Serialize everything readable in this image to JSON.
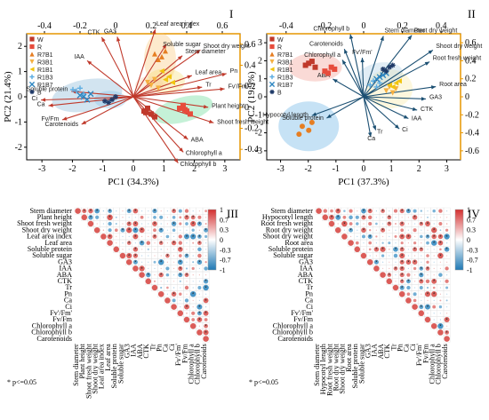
{
  "panels": {
    "I": {
      "id": "I",
      "xlabel": "PC1 (34.3%)",
      "ylabel": "PC2 (21.4%)",
      "xticks": [
        "-3",
        "-2",
        "-1",
        "0",
        "1",
        "2",
        "3"
      ],
      "yticks": [
        "2",
        "1",
        "0",
        "-1",
        "-2"
      ],
      "top_ticks": [
        "-0.4",
        "-0.2",
        "0",
        "0.2",
        "0.4",
        "0.6"
      ],
      "right_ticks": [
        "0.6",
        "0.4",
        "0.2",
        "0",
        "-0.2",
        "-0.4"
      ],
      "legend": [
        "W",
        "R",
        "R7B1",
        "R3B1",
        "R1B1",
        "R1B3",
        "R1B7",
        "B"
      ],
      "vars": [
        "GA3",
        "CTK",
        "IAA",
        "Leaf area index",
        "Soluble sugar",
        "Shoot dry weight",
        "Stem diameter",
        "Pn",
        "Tr",
        "Leaf area",
        "Fv'/Fm'",
        "Plant height",
        "Shoot fresh weight",
        "ABA",
        "Chlorophyll a",
        "Chlorophyll b",
        "Carotenoids",
        "Fv/Fm",
        "Ca",
        "Ci",
        "Soluble protein"
      ]
    },
    "II": {
      "id": "II",
      "xlabel": "PC1 (37.3%)",
      "ylabel": "PC2 (19.9%)",
      "xticks": [
        "-3",
        "-2",
        "-1",
        "0",
        "1",
        "2",
        "3"
      ],
      "yticks": [
        "3",
        "2",
        "1",
        "0",
        "-1",
        "-2",
        "-3"
      ],
      "top_ticks": [
        "-0.4",
        "-0.2",
        "0",
        "0.2",
        "0.4"
      ],
      "right_ticks": [
        "0.6",
        "0.4",
        "0.2",
        "0",
        "-0.2",
        "-0.4",
        "-0.6"
      ],
      "legend": [
        "W",
        "R",
        "R7B1",
        "R3B1",
        "R1B1",
        "R1B3",
        "R1B7",
        "B"
      ],
      "vars": [
        "Carotenoids",
        "Chlorophyll b",
        "Chlorophyll a",
        "Fv'/Fm'",
        "Stem diameter",
        "Root dry weight",
        "Shoot dry weight",
        "Root fresh weight",
        "ABA",
        "Root area",
        "GA3",
        "CTK",
        "IAA",
        "Ci",
        "Tr",
        "Ca",
        "Soluble protein",
        "Hypocotyl length"
      ]
    },
    "III": {
      "id": "III",
      "rows": [
        "Stem diameter",
        "Plant height",
        "Shoot fresh weight",
        "Shoot dry weight",
        "Leaf area index",
        "Leaf area",
        "Soluble protein",
        "Soluble sugar",
        "GA3",
        "IAA",
        "ABA",
        "CTK",
        "Tr",
        "Pn",
        "Ca",
        "Ci",
        "Fv'/Fm'",
        "Fv/Fm",
        "Chlorophyll a",
        "Chlorophyll b",
        "Carotenoids"
      ],
      "note": "* p<=0.05",
      "colorbar": [
        "1",
        "0.7",
        "0.3",
        "0",
        "-0.3",
        "-0.7",
        "-1"
      ]
    },
    "IV": {
      "id": "IV",
      "rows": [
        "Stem diameter",
        "Hypocotyl length",
        "Root fresh weight",
        "Root dry weight",
        "Shoot dry weight",
        "Root area",
        "Soluble protein",
        "Soluble sugar",
        "GA3",
        "IAA",
        "ABA",
        "CTK",
        "Tr",
        "Pn",
        "Ca",
        "Ci",
        "Fv'/Fm'",
        "Fv/Fm",
        "Chlorophyll a",
        "Chlorophyll b",
        "Carotenoids"
      ],
      "note": "* p<=0.05",
      "colorbar": [
        "1",
        "0.7",
        "0.3",
        "0",
        "-0.3",
        "-0.7",
        "-1"
      ]
    }
  },
  "colors": {
    "W": "#c0392b",
    "R": "#e74c3c",
    "R7B1": "#e67e22",
    "R3B1": "#f5b041",
    "R1B1": "#f1c40f",
    "R1B3": "#5dade2",
    "R1B7": "#2e86c1",
    "B": "#1f3a68",
    "arrow1": "#c0392b",
    "arrow2": "#1b4f72",
    "axis_right": "#e69500",
    "pos": "#d9534f",
    "neg": "#3b8fc4"
  },
  "chart_data": [
    {
      "type": "scatter",
      "title": "I",
      "xlabel": "PC1 (34.3%)",
      "ylabel": "PC2 (21.4%)",
      "xlim": [
        -3,
        3
      ],
      "ylim": [
        -2.2,
        2.2
      ],
      "series": [
        {
          "name": "W",
          "x": [
            0.3,
            0.5,
            0.4,
            0.6,
            0.35
          ],
          "y": [
            -0.5,
            -0.6,
            -0.4,
            -0.7,
            -0.55
          ]
        },
        {
          "name": "R",
          "x": [
            1.3,
            1.5,
            1.4,
            1.6,
            1.45
          ],
          "y": [
            -0.4,
            -0.5,
            -0.3,
            -0.6,
            -0.45
          ]
        },
        {
          "name": "R7B1",
          "x": [
            0.6,
            0.8,
            0.9,
            0.7
          ],
          "y": [
            1.5,
            1.4,
            1.6,
            1.3
          ]
        },
        {
          "name": "R3B1",
          "x": [
            0.5,
            0.7,
            0.4,
            0.6
          ],
          "y": [
            0.4,
            0.3,
            0.5,
            0.6
          ]
        },
        {
          "name": "R1B1",
          "x": [
            0.9,
            1.1,
            0.8,
            1.0
          ],
          "y": [
            0.6,
            0.5,
            0.9,
            0.7
          ]
        },
        {
          "name": "R1B3",
          "x": [
            -1.6,
            -1.5,
            -1.4,
            -1.7
          ],
          "y": [
            0.2,
            0.3,
            0.1,
            0.25
          ]
        },
        {
          "name": "R1B7",
          "x": [
            -1.4,
            -1.2,
            -1.3,
            -1.5
          ],
          "y": [
            0.0,
            0.1,
            -0.1,
            0.05
          ]
        },
        {
          "name": "B",
          "x": [
            -0.7,
            -0.6,
            -0.5,
            -0.8
          ],
          "y": [
            -0.2,
            -0.1,
            0.0,
            -0.15
          ]
        }
      ]
    },
    {
      "type": "scatter",
      "title": "II",
      "xlabel": "PC1 (37.3%)",
      "ylabel": "PC2 (19.9%)",
      "xlim": [
        -3,
        3
      ],
      "ylim": [
        -3.2,
        3.2
      ],
      "series": [
        {
          "name": "W",
          "x": [
            -1.8,
            -1.6,
            -1.5,
            -1.7
          ],
          "y": [
            1.6,
            1.8,
            1.5,
            1.7
          ]
        },
        {
          "name": "R",
          "x": [
            -1.2,
            -1.0,
            -1.1,
            -0.9
          ],
          "y": [
            1.3,
            1.5,
            1.2,
            1.4
          ]
        },
        {
          "name": "R7B1",
          "x": [
            -1.9,
            -1.7,
            -1.6,
            -2.0
          ],
          "y": [
            -1.5,
            -1.7,
            -1.3,
            -1.9
          ]
        },
        {
          "name": "R3B1",
          "x": [
            0.7,
            0.9,
            0.8,
            1.0
          ],
          "y": [
            0.3,
            0.2,
            0.5,
            0.4
          ]
        },
        {
          "name": "R1B1",
          "x": [
            0.8,
            1.0,
            0.9,
            1.1
          ],
          "y": [
            0.6,
            0.7,
            0.5,
            0.8
          ]
        },
        {
          "name": "R1B3",
          "x": [
            0.2,
            0.4,
            0.3,
            0.5
          ],
          "y": [
            0.6,
            0.5,
            0.8,
            0.7
          ]
        },
        {
          "name": "R1B7",
          "x": [
            0.5,
            0.6,
            0.4,
            0.7
          ],
          "y": [
            1.0,
            1.1,
            0.9,
            1.2
          ]
        },
        {
          "name": "B",
          "x": [
            0.6,
            0.8,
            0.7,
            0.9
          ],
          "y": [
            1.4,
            1.5,
            1.3,
            1.6
          ]
        }
      ]
    },
    {
      "type": "heatmap",
      "title": "III",
      "rows": [
        "Stem diameter",
        "Plant height",
        "Shoot fresh weight",
        "Shoot dry weight",
        "Leaf area index",
        "Leaf area",
        "Soluble protein",
        "Soluble sugar",
        "GA3",
        "IAA",
        "ABA",
        "CTK",
        "Tr",
        "Pn",
        "Ca",
        "Ci",
        "Fv'/Fm'",
        "Fv/Fm",
        "Chlorophyll a",
        "Chlorophyll b",
        "Carotenoids"
      ],
      "colorbar": [
        -1,
        1
      ]
    },
    {
      "type": "heatmap",
      "title": "IV",
      "rows": [
        "Stem diameter",
        "Hypocotyl length",
        "Root fresh weight",
        "Root dry weight",
        "Shoot dry weight",
        "Root area",
        "Soluble protein",
        "Soluble sugar",
        "GA3",
        "IAA",
        "ABA",
        "CTK",
        "Tr",
        "Pn",
        "Ca",
        "Ci",
        "Fv'/Fm'",
        "Fv/Fm",
        "Chlorophyll a",
        "Chlorophyll b",
        "Carotenoids"
      ],
      "colorbar": [
        -1,
        1
      ]
    }
  ]
}
